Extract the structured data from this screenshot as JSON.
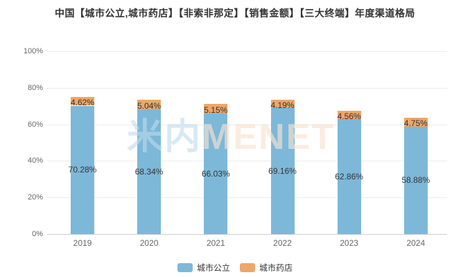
{
  "title": "中国【城市公立,城市药店】【非索非那定】【销售金额】【三大终端】年度渠道格局",
  "watermark": {
    "part_cn": "米内",
    "part_en": "MENET"
  },
  "colors": {
    "city_public_blue": "#7db8d9",
    "city_pharmacy_orange": "#eda768",
    "gridline": "#ececec",
    "axis_line": "#cccccc",
    "label_text": "#333333",
    "axis_text": "#666666"
  },
  "chart_data": {
    "type": "bar",
    "stacked": true,
    "title": "中国【城市公立,城市药店】【非索非那定】【销售金额】【三大终端】年度渠道格局",
    "categories": [
      "2019",
      "2020",
      "2021",
      "2022",
      "2023",
      "2024"
    ],
    "series": [
      {
        "name": "城市公立",
        "color": "#7db8d9",
        "values": [
          70.28,
          68.34,
          66.03,
          69.16,
          62.86,
          58.88
        ]
      },
      {
        "name": "城市药店",
        "color": "#eda768",
        "values": [
          4.62,
          5.04,
          5.15,
          4.19,
          4.56,
          4.75
        ]
      }
    ],
    "value_unit": "%",
    "y_axis": {
      "min": 0,
      "max": 100,
      "tick_step": 20,
      "tick_labels": [
        "0%",
        "20%",
        "40%",
        "60%",
        "80%",
        "100%"
      ]
    },
    "grid": true,
    "legend_position": "bottom",
    "legend": [
      "城市公立",
      "城市药店"
    ]
  }
}
